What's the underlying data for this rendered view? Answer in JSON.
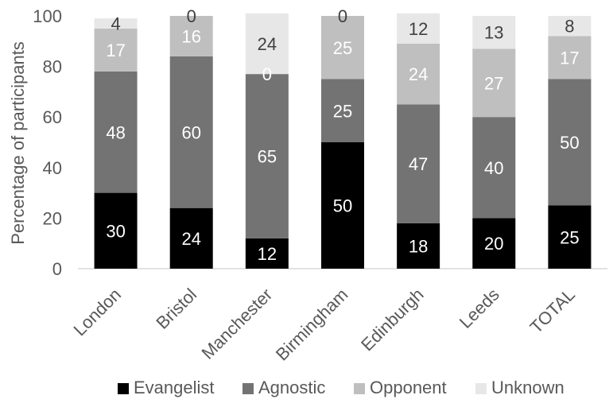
{
  "chart_data": {
    "type": "bar",
    "stacked": true,
    "title": "",
    "xlabel": "",
    "ylabel": "Percentage of participants",
    "ylim": [
      0,
      100
    ],
    "yticks": [
      "0",
      "20",
      "40",
      "60",
      "80",
      "100"
    ],
    "grid": false,
    "legend_position": "bottom",
    "categories": [
      "London",
      "Bristol",
      "Manchester",
      "Birmingham",
      "Edinburgh",
      "Leeds",
      "TOTAL"
    ],
    "series": [
      {
        "name": "Evangelist",
        "color": "#000000",
        "label_color": "#ffffff",
        "values": [
          30,
          24,
          12,
          50,
          18,
          20,
          25
        ]
      },
      {
        "name": "Agnostic",
        "color": "#737373",
        "label_color": "#ffffff",
        "values": [
          48,
          60,
          65,
          25,
          47,
          40,
          50
        ]
      },
      {
        "name": "Opponent",
        "color": "#bfbfbf",
        "label_color": "#ffffff",
        "values": [
          17,
          16,
          0,
          25,
          24,
          27,
          17
        ]
      },
      {
        "name": "Unknown",
        "color": "#e7e7e7",
        "label_color": "#404040",
        "values": [
          4,
          0,
          24,
          0,
          12,
          13,
          8
        ]
      }
    ]
  }
}
